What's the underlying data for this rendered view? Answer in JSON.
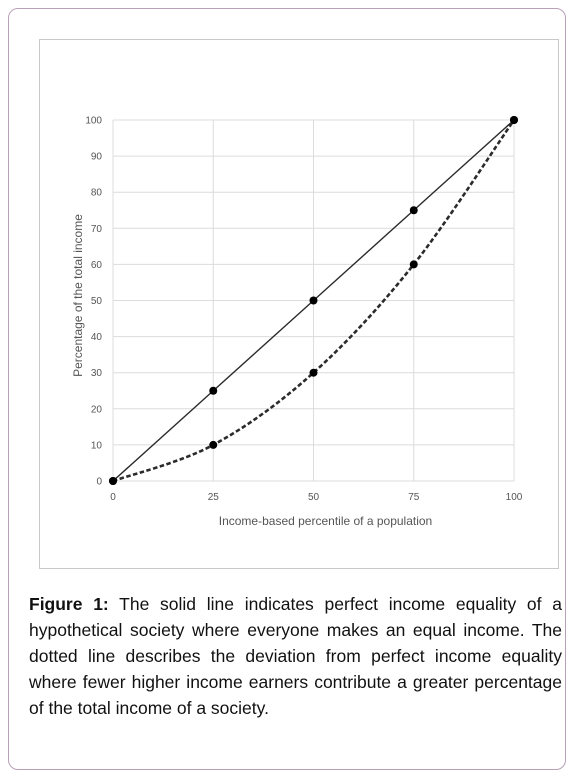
{
  "chart_data": {
    "type": "line",
    "title": "",
    "xlabel": "Income-based percentile of a population",
    "ylabel": "Percentage of the total income",
    "x_ticks": [
      "0",
      "25",
      "50",
      "75",
      "100"
    ],
    "y_ticks": [
      "0",
      "10",
      "20",
      "30",
      "40",
      "50",
      "60",
      "70",
      "80",
      "90",
      "100"
    ],
    "xlim": [
      0,
      100
    ],
    "ylim": [
      0,
      100
    ],
    "grid": "horizontal and vertical",
    "series": [
      {
        "style": "solid",
        "color": "#2b2b2b",
        "curve": "straight",
        "points": [
          [
            0,
            0
          ],
          [
            25,
            25
          ],
          [
            50,
            50
          ],
          [
            75,
            75
          ],
          [
            100,
            100
          ]
        ]
      },
      {
        "style": "dotted",
        "color": "#2b2b2b",
        "curve": "smooth",
        "points": [
          [
            0,
            0
          ],
          [
            25,
            10
          ],
          [
            50,
            30
          ],
          [
            75,
            60
          ],
          [
            100,
            100
          ]
        ]
      }
    ]
  },
  "caption": {
    "label": "Figure 1:",
    "text": " The solid line indicates perfect income equality of a hypothetical society where everyone makes an equal income. The dotted line describes the deviation from perfect income equality where fewer higher income earners contribute a greater percentage of the total income of a society."
  }
}
